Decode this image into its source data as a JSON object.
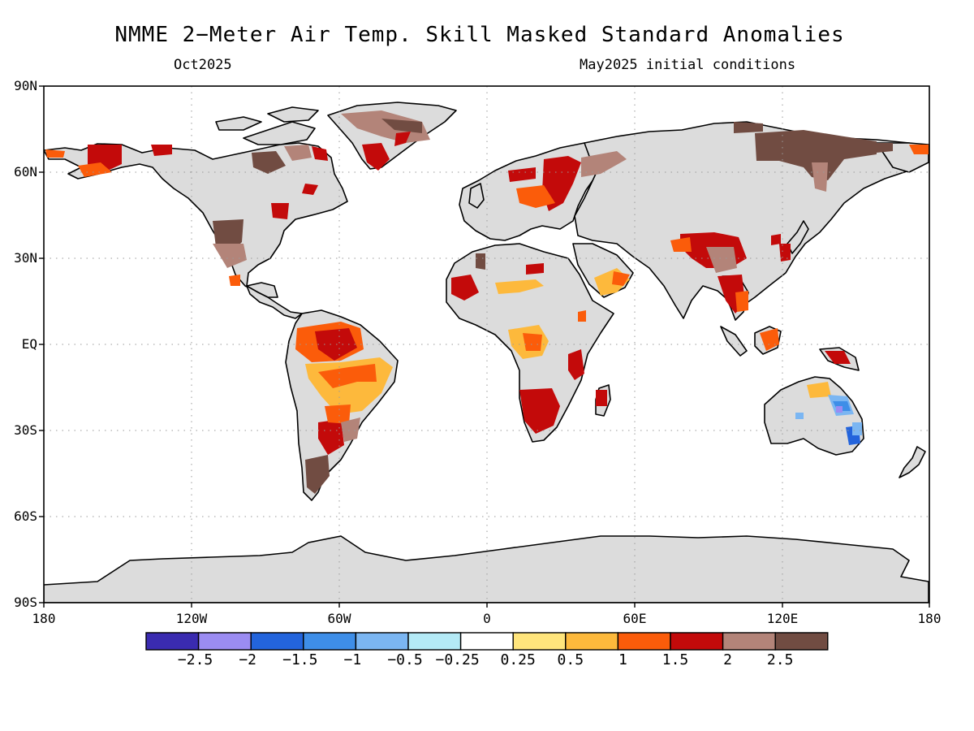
{
  "title": "NMME 2−Meter Air Temp. Skill Masked Standard Anomalies",
  "valid_month": "Oct2025",
  "init_conditions": "May2025 initial conditions",
  "lat_labels": [
    "90N",
    "60N",
    "30N",
    "EQ",
    "30S",
    "60S",
    "90S"
  ],
  "lon_labels": [
    "180",
    "120W",
    "60W",
    "0",
    "60E",
    "120E",
    "180"
  ],
  "colorbar": {
    "colors": [
      "#3a2bb0",
      "#9b8cf2",
      "#2364dc",
      "#3e8ee8",
      "#7bb6f2",
      "#b4eaf6",
      "#ffffff",
      "#ffe57c",
      "#fdb93c",
      "#fb5c0a",
      "#c30a0a",
      "#b38479",
      "#714c42"
    ],
    "labels": [
      "−2.5",
      "−2",
      "−1.5",
      "−1",
      "−0.5",
      "−0.25",
      "0.25",
      "0.5",
      "1",
      "1.5",
      "2",
      "2.5"
    ]
  },
  "colors": {
    "land_masked": "#dcdcdc",
    "coast": "#000000",
    "grid": "#9a9a9a"
  }
}
